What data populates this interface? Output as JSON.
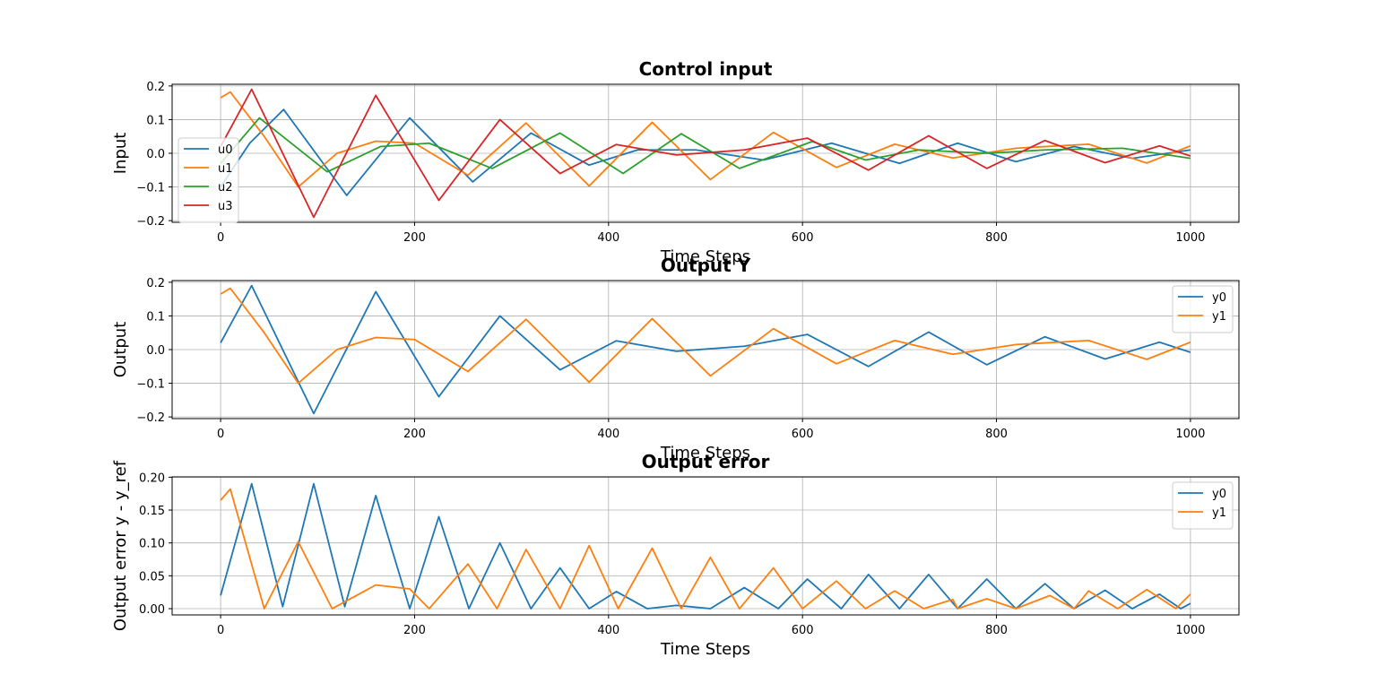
{
  "chart_data": [
    {
      "type": "line",
      "title": "Control input",
      "xlabel": "Time Steps",
      "ylabel": "Input",
      "xlim": [
        -50,
        1050
      ],
      "ylim": [
        -0.205,
        0.205
      ],
      "xticks": [
        0,
        200,
        400,
        600,
        800,
        1000
      ],
      "yticks": [
        -0.2,
        -0.1,
        0.0,
        0.1,
        0.2
      ],
      "xtick_labels": [
        "0",
        "200",
        "400",
        "600",
        "800",
        "1000"
      ],
      "ytick_labels": [
        "−0.2",
        "−0.1",
        "0.0",
        "0.1",
        "0.2"
      ],
      "grid": true,
      "legend_position": "center-left",
      "series": [
        {
          "name": "u0",
          "color": "#1f77b4",
          "x": [
            0,
            30,
            65,
            130,
            195,
            260,
            320,
            380,
            430,
            490,
            560,
            630,
            700,
            760,
            820,
            880,
            940,
            1000
          ],
          "y": [
            -0.1,
            0.03,
            0.13,
            -0.125,
            0.105,
            -0.085,
            0.06,
            -0.035,
            0.01,
            0.01,
            -0.02,
            0.03,
            -0.03,
            0.03,
            -0.025,
            0.02,
            -0.015,
            0.01
          ]
        },
        {
          "name": "u1",
          "color": "#ff7f0e",
          "x": [
            0,
            10,
            45,
            80,
            120,
            160,
            200,
            255,
            315,
            380,
            445,
            505,
            570,
            635,
            695,
            755,
            820,
            895,
            955,
            1000
          ],
          "y": [
            0.165,
            0.182,
            0.05,
            -0.1,
            0.0,
            0.036,
            0.03,
            -0.065,
            0.09,
            -0.097,
            0.092,
            -0.078,
            0.062,
            -0.042,
            0.027,
            -0.014,
            0.015,
            0.027,
            -0.029,
            0.022
          ]
        },
        {
          "name": "u2",
          "color": "#2ca02c",
          "x": [
            0,
            40,
            110,
            165,
            215,
            280,
            350,
            415,
            475,
            535,
            610,
            665,
            720,
            790,
            850,
            930,
            1000
          ],
          "y": [
            -0.03,
            0.105,
            -0.055,
            0.02,
            0.03,
            -0.045,
            0.06,
            -0.06,
            0.058,
            -0.045,
            0.035,
            -0.02,
            0.01,
            0.0,
            0.01,
            0.015,
            -0.015
          ]
        },
        {
          "name": "u3",
          "color": "#d62728",
          "x": [
            0,
            32,
            96,
            160,
            225,
            288,
            350,
            408,
            470,
            540,
            605,
            668,
            730,
            790,
            850,
            912,
            968,
            1000
          ],
          "y": [
            0.02,
            0.19,
            -0.19,
            0.172,
            -0.14,
            0.1,
            -0.06,
            0.026,
            -0.005,
            0.01,
            0.045,
            -0.05,
            0.052,
            -0.045,
            0.038,
            -0.028,
            0.022,
            -0.008
          ]
        }
      ]
    },
    {
      "type": "line",
      "title": "Output Y",
      "xlabel": "Time Steps",
      "ylabel": "Output",
      "xlim": [
        -50,
        1050
      ],
      "ylim": [
        -0.205,
        0.205
      ],
      "xticks": [
        0,
        200,
        400,
        600,
        800,
        1000
      ],
      "yticks": [
        -0.2,
        -0.1,
        0.0,
        0.1,
        0.2
      ],
      "xtick_labels": [
        "0",
        "200",
        "400",
        "600",
        "800",
        "1000"
      ],
      "ytick_labels": [
        "−0.2",
        "−0.1",
        "0.0",
        "0.1",
        "0.2"
      ],
      "grid": true,
      "legend_position": "top-right",
      "series": [
        {
          "name": "y0",
          "color": "#1f77b4",
          "x": [
            0,
            32,
            96,
            160,
            225,
            288,
            350,
            408,
            470,
            540,
            605,
            668,
            730,
            790,
            850,
            912,
            968,
            1000
          ],
          "y": [
            0.02,
            0.19,
            -0.19,
            0.172,
            -0.14,
            0.1,
            -0.06,
            0.026,
            -0.005,
            0.01,
            0.045,
            -0.05,
            0.052,
            -0.045,
            0.038,
            -0.028,
            0.022,
            -0.008
          ]
        },
        {
          "name": "y1",
          "color": "#ff7f0e",
          "x": [
            0,
            10,
            45,
            80,
            120,
            160,
            200,
            255,
            315,
            380,
            445,
            505,
            570,
            635,
            695,
            755,
            820,
            895,
            955,
            1000
          ],
          "y": [
            0.165,
            0.182,
            0.05,
            -0.1,
            0.0,
            0.036,
            0.03,
            -0.065,
            0.09,
            -0.097,
            0.092,
            -0.078,
            0.062,
            -0.042,
            0.027,
            -0.014,
            0.015,
            0.027,
            -0.029,
            0.022
          ]
        }
      ]
    },
    {
      "type": "line",
      "title": "Output error",
      "xlabel": "Time Steps",
      "ylabel": "Output error y - y_ref",
      "xlim": [
        -50,
        1050
      ],
      "ylim": [
        -0.0095,
        0.2005
      ],
      "xticks": [
        0,
        200,
        400,
        600,
        800,
        1000
      ],
      "yticks": [
        0.0,
        0.05,
        0.1,
        0.15,
        0.2
      ],
      "xtick_labels": [
        "0",
        "200",
        "400",
        "600",
        "800",
        "1000"
      ],
      "ytick_labels": [
        "0.00",
        "0.05",
        "0.10",
        "0.15",
        "0.20"
      ],
      "grid": true,
      "legend_position": "top-right",
      "series": [
        {
          "name": "y0",
          "color": "#1f77b4",
          "x": [
            0,
            32,
            64,
            96,
            128,
            160,
            195,
            225,
            256,
            288,
            320,
            350,
            380,
            408,
            440,
            470,
            505,
            540,
            575,
            605,
            640,
            668,
            700,
            730,
            760,
            790,
            820,
            850,
            880,
            912,
            940,
            968,
            990,
            1000
          ],
          "y": [
            0.02,
            0.19,
            0.003,
            0.19,
            0.003,
            0.172,
            0.0,
            0.14,
            0.0,
            0.1,
            0.0,
            0.062,
            0.0,
            0.026,
            0.0,
            0.005,
            0.0,
            0.032,
            0.0,
            0.045,
            0.0,
            0.052,
            0.0,
            0.052,
            0.0,
            0.045,
            0.0,
            0.038,
            0.0,
            0.028,
            0.0,
            0.022,
            0.0,
            0.008
          ]
        },
        {
          "name": "y1",
          "color": "#ff7f0e",
          "x": [
            0,
            10,
            45,
            80,
            115,
            160,
            195,
            215,
            255,
            285,
            315,
            350,
            380,
            410,
            445,
            475,
            505,
            535,
            570,
            600,
            635,
            665,
            695,
            725,
            755,
            760,
            790,
            820,
            855,
            880,
            895,
            925,
            955,
            985,
            1000
          ],
          "y": [
            0.165,
            0.182,
            0.0,
            0.102,
            0.0,
            0.036,
            0.03,
            0.0,
            0.068,
            0.0,
            0.09,
            0.0,
            0.096,
            0.0,
            0.092,
            0.0,
            0.078,
            0.0,
            0.062,
            0.0,
            0.042,
            0.0,
            0.027,
            0.0,
            0.014,
            0.0,
            0.015,
            0.0,
            0.02,
            0.0,
            0.027,
            0.0,
            0.029,
            0.0,
            0.022
          ]
        }
      ]
    }
  ]
}
